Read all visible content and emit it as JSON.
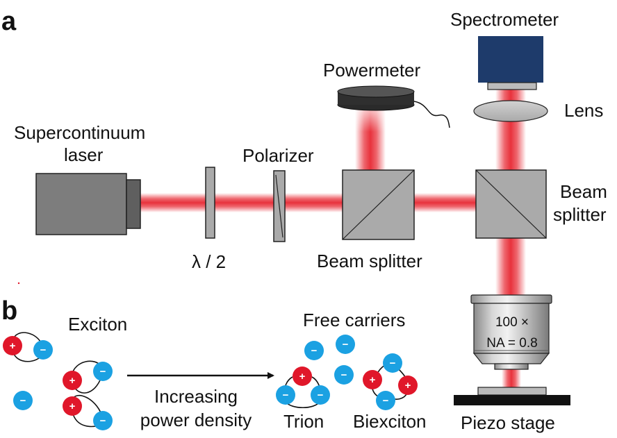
{
  "panels": {
    "a": "a",
    "b": "b"
  },
  "labels": {
    "laser_line1": "Supercontinuum",
    "laser_line2": "laser",
    "half_wave": "λ / 2",
    "polarizer": "Polarizer",
    "powermeter": "Powermeter",
    "beam_splitter_1": "Beam splitter",
    "beam_splitter_2_line1": "Beam",
    "beam_splitter_2_line2": "splitter",
    "spectrometer": "Spectrometer",
    "lens": "Lens",
    "objective_line1": "100 ×",
    "objective_line2": "NA = 0.8",
    "piezo_stage": "Piezo stage",
    "exciton": "Exciton",
    "arrow_line1": "Increasing",
    "arrow_line2": "power density",
    "free_carriers": "Free carriers",
    "trion": "Trion",
    "biexciton": "Biexciton"
  },
  "signs": {
    "positive": "+",
    "negative": "−"
  },
  "colors": {
    "beam": "#e8323c",
    "hole": "#e0172a",
    "electron": "#1ba1e2",
    "optic_gray": "#aaaaaa",
    "laser_body": "#7d7d7d",
    "spectrometer_body": "#1e3b6b"
  }
}
